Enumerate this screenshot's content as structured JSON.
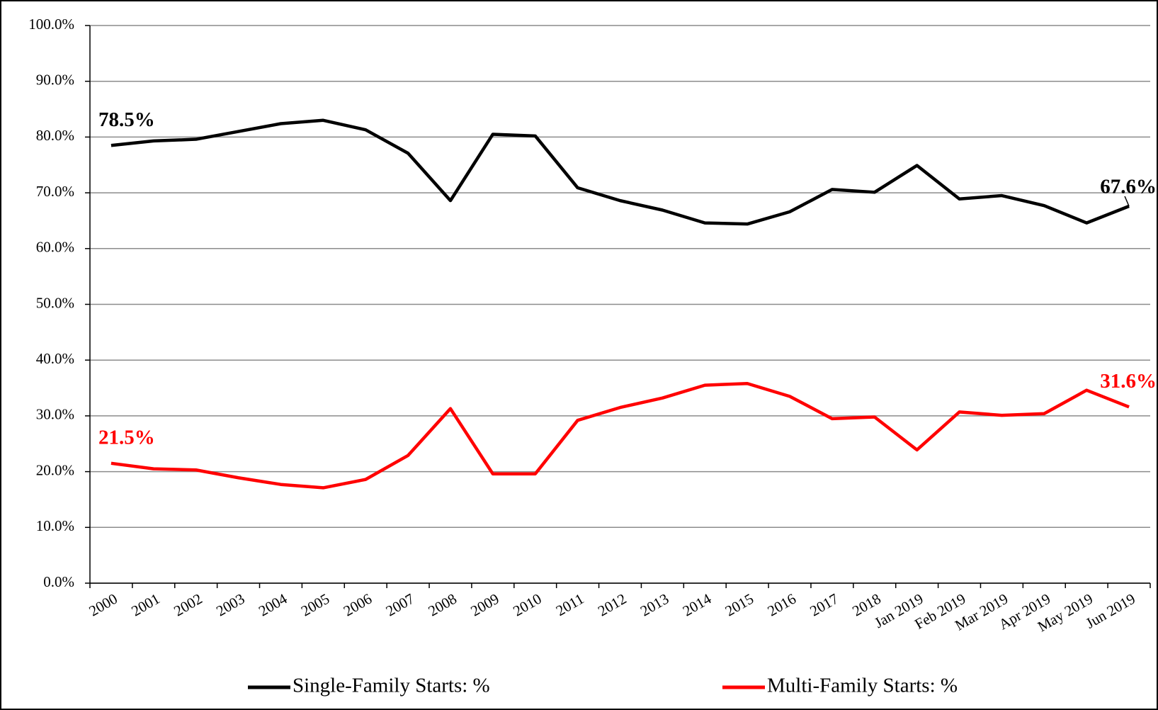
{
  "chart_data": {
    "type": "line",
    "categories": [
      "2000",
      "2001",
      "2002",
      "2003",
      "2004",
      "2005",
      "2006",
      "2007",
      "2008",
      "2009",
      "2010",
      "2011",
      "2012",
      "2013",
      "2014",
      "2015",
      "2016",
      "2017",
      "2018",
      "Jan 2019",
      "Feb 2019",
      "Mar 2019",
      "Apr 2019",
      "May 2019",
      "Jun 2019"
    ],
    "series": [
      {
        "name": "Single-Family Starts: %",
        "color": "#000000",
        "values": [
          78.5,
          79.3,
          79.6,
          81.0,
          82.4,
          83.0,
          81.3,
          77.1,
          68.6,
          80.5,
          80.2,
          70.9,
          68.6,
          66.9,
          64.6,
          64.4,
          66.6,
          70.6,
          70.1,
          74.9,
          68.9,
          69.5,
          67.7,
          64.6,
          67.6
        ],
        "value_labels": [
          "78.5%",
          null,
          null,
          null,
          null,
          null,
          null,
          null,
          null,
          null,
          null,
          null,
          null,
          null,
          null,
          null,
          null,
          null,
          null,
          null,
          null,
          null,
          null,
          null,
          "67.6%"
        ]
      },
      {
        "name": "Multi-Family Starts: %",
        "color": "#ff0000",
        "values": [
          21.5,
          20.5,
          20.3,
          18.9,
          17.7,
          17.1,
          18.6,
          22.9,
          31.3,
          19.6,
          19.6,
          29.2,
          31.5,
          33.2,
          35.5,
          35.8,
          33.5,
          29.5,
          29.8,
          23.9,
          30.7,
          30.1,
          30.4,
          34.6,
          31.6
        ],
        "value_labels": [
          "21.5%",
          null,
          null,
          null,
          null,
          null,
          null,
          null,
          null,
          null,
          null,
          null,
          null,
          null,
          null,
          null,
          null,
          null,
          null,
          null,
          null,
          null,
          null,
          null,
          "31.6%"
        ]
      }
    ],
    "ylim": [
      0,
      100
    ],
    "yticks": [
      {
        "value": 0,
        "label": "0.0%"
      },
      {
        "value": 10,
        "label": "10.0%"
      },
      {
        "value": 20,
        "label": "20.0%"
      },
      {
        "value": 30,
        "label": "30.0%"
      },
      {
        "value": 40,
        "label": "40.0%"
      },
      {
        "value": 50,
        "label": "50.0%"
      },
      {
        "value": 60,
        "label": "60.0%"
      },
      {
        "value": 70,
        "label": "70.0%"
      },
      {
        "value": 80,
        "label": "80.0%"
      },
      {
        "value": 90,
        "label": "90.0%"
      },
      {
        "value": 100,
        "label": "100.0%"
      }
    ],
    "grid": true,
    "legend": "bottom"
  }
}
